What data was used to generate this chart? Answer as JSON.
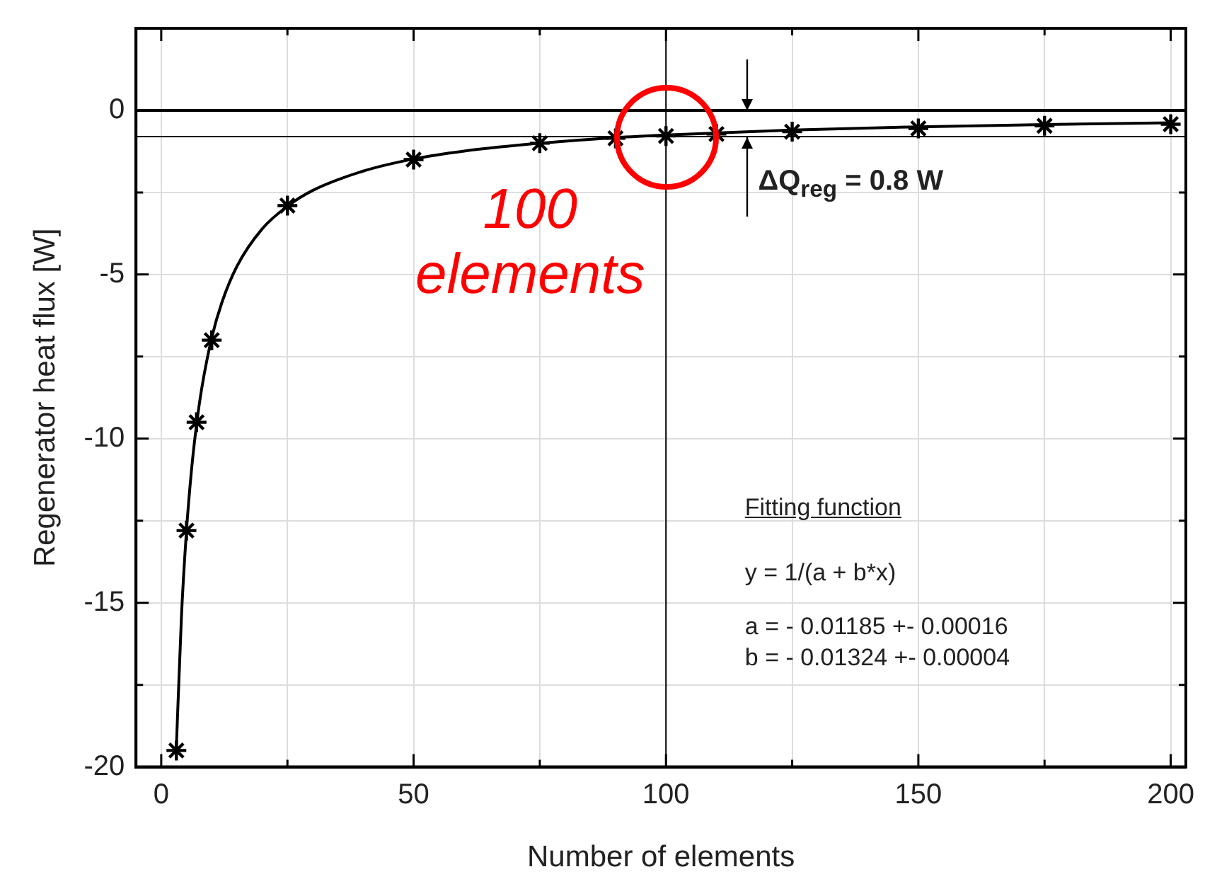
{
  "chart_data": {
    "type": "scatter",
    "xlabel": "Number of elements",
    "ylabel": "Regenerator heat flux [W]",
    "series": [
      {
        "color": "#000000",
        "marker": "cross",
        "x": [
          3,
          5,
          7,
          10,
          25,
          50,
          75,
          90,
          100,
          110,
          125,
          150,
          175,
          200
        ],
        "values": [
          -19.5,
          -12.8,
          -9.5,
          -7.0,
          -2.9,
          -1.5,
          -1.0,
          -0.85,
          -0.78,
          -0.72,
          -0.65,
          -0.55,
          -0.47,
          -0.42
        ]
      },
      {
        "type": "line",
        "color": "#000000",
        "marker": "none",
        "line_style": "solid",
        "x": [
          3,
          4,
          5,
          6,
          7,
          8,
          10,
          12,
          15,
          20,
          25,
          30,
          40,
          50,
          60,
          75,
          90,
          100,
          125,
          150,
          175,
          200
        ],
        "values": [
          -19.39,
          -15.43,
          -12.81,
          -10.95,
          -9.57,
          -8.49,
          -6.93,
          -5.86,
          -4.75,
          -3.61,
          -2.92,
          -2.44,
          -1.85,
          -1.48,
          -1.24,
          -1.0,
          -0.83,
          -0.75,
          -0.6,
          -0.5,
          -0.43,
          -0.38
        ]
      }
    ],
    "xlim": [
      -5,
      203
    ],
    "ylim": [
      -20,
      2.5
    ],
    "xticks": [
      0,
      {
        "value": 25,
        "label": null
      },
      50,
      {
        "value": 75,
        "label": null
      },
      100,
      {
        "value": 125,
        "label": null
      },
      150,
      {
        "value": 175,
        "label": null
      },
      200
    ],
    "yticks": [
      -20,
      {
        "value": -17.5,
        "label": null
      },
      -15,
      {
        "value": -12.5,
        "label": null
      },
      -10,
      {
        "value": -7.5,
        "label": null
      },
      -5,
      {
        "value": -2.5,
        "label": null
      },
      0
    ],
    "grid": true,
    "legend": false,
    "ref_lines": [
      {
        "axis": "y",
        "value": 0,
        "color": "#000000"
      },
      {
        "axis": "y",
        "value": -0.8,
        "color": "#000000"
      },
      {
        "axis": "x",
        "value": 100,
        "color": "#000000"
      }
    ],
    "annotations": [
      {
        "text": "100 elements",
        "x": 100,
        "y": -0.8
      },
      {
        "text": "ΔQ$_{reg}$ = 0.8 W",
        "x": 116,
        "y": -0.4
      },
      "Fitting function",
      "y = 1/(a + b*x)",
      "a = - 0.01185 +- 0.00016",
      "b = - 0.01324 +- 0.00004"
    ]
  }
}
